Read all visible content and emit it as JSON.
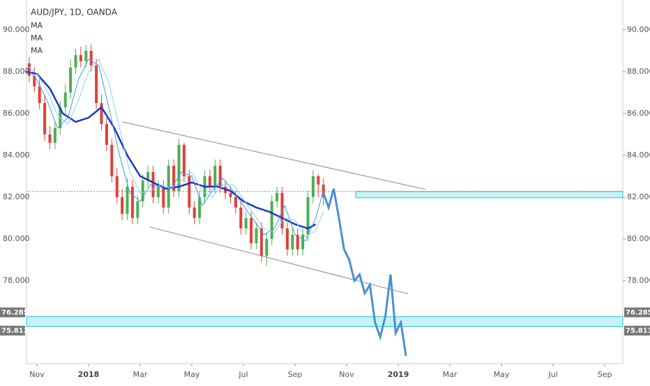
{
  "chart_data": {
    "type": "candlestick",
    "title": "AUD/JPY, 1D, OANDA",
    "legend": [
      "MA",
      "MA",
      "MA"
    ],
    "xlim": [
      -0.405,
      22.7
    ],
    "ylim": [
      74.03,
      91.43
    ],
    "xticks": [
      {
        "value": 0,
        "label": "Nov"
      },
      {
        "value": 2,
        "label": "2018"
      },
      {
        "value": 4,
        "label": "Mar"
      },
      {
        "value": 6,
        "label": "May"
      },
      {
        "value": 8,
        "label": "Jul"
      },
      {
        "value": 10,
        "label": "Sep"
      },
      {
        "value": 12,
        "label": "Nov"
      },
      {
        "value": 14,
        "label": "2019"
      },
      {
        "value": 16,
        "label": "Mar"
      },
      {
        "value": 18,
        "label": "May"
      },
      {
        "value": 20,
        "label": "Jul"
      },
      {
        "value": 22,
        "label": "Sep"
      }
    ],
    "yticks": [
      {
        "value": 78,
        "label": "78.000"
      },
      {
        "value": 80,
        "label": "80.000"
      },
      {
        "value": 82,
        "label": "82.000"
      },
      {
        "value": 84,
        "label": "84.000"
      },
      {
        "value": 86,
        "label": "86.000"
      },
      {
        "value": 88,
        "label": "88.000"
      },
      {
        "value": 90,
        "label": "90.000"
      }
    ],
    "up_color": "#4caf50",
    "down_color": "#e0403a",
    "candles": {
      "x": [
        -0.3,
        -0.1,
        0.1,
        0.3,
        0.5,
        0.7,
        0.9,
        1.1,
        1.3,
        1.5,
        1.7,
        1.9,
        2.1,
        2.3,
        2.5,
        2.7,
        2.9,
        3.1,
        3.3,
        3.5,
        3.7,
        3.9,
        4.1,
        4.3,
        4.5,
        4.7,
        4.9,
        5.1,
        5.3,
        5.5,
        5.7,
        5.9,
        6.1,
        6.3,
        6.5,
        6.7,
        6.9,
        7.1,
        7.3,
        7.5,
        7.7,
        7.9,
        8.1,
        8.3,
        8.5,
        8.7,
        8.9,
        9.1,
        9.3,
        9.5,
        9.7,
        9.9,
        10.1,
        10.3,
        10.5,
        10.7,
        10.9,
        11.1
      ],
      "open": [
        88.4,
        87.8,
        87.3,
        86.5,
        85.0,
        84.6,
        85.3,
        86.3,
        87.0,
        88.2,
        88.8,
        88.5,
        89.0,
        88.3,
        86.5,
        85.5,
        84.5,
        83.0,
        82.0,
        81.2,
        82.5,
        81.0,
        81.8,
        82.8,
        83.2,
        82.0,
        82.5,
        81.5,
        83.5,
        82.3,
        84.5,
        83.0,
        81.5,
        81.0,
        82.0,
        83.0,
        82.5,
        83.5,
        82.5,
        82.2,
        82.0,
        81.5,
        80.5,
        81.0,
        79.8,
        80.5,
        79.2,
        80.0,
        81.8,
        82.2,
        80.5,
        79.5,
        80.2,
        79.5,
        80.2,
        82.0,
        83.0,
        82.6
      ],
      "close": [
        87.8,
        87.3,
        86.5,
        85.0,
        84.6,
        85.3,
        86.3,
        87.0,
        88.2,
        88.8,
        88.5,
        89.0,
        88.3,
        86.5,
        85.5,
        84.5,
        83.0,
        82.0,
        81.2,
        82.5,
        81.0,
        81.8,
        82.8,
        83.2,
        82.0,
        82.5,
        81.5,
        83.5,
        82.3,
        84.5,
        83.0,
        81.5,
        81.0,
        82.0,
        83.0,
        82.5,
        83.5,
        82.5,
        82.2,
        82.0,
        81.5,
        80.5,
        81.0,
        79.8,
        80.5,
        79.2,
        80.0,
        81.8,
        82.2,
        80.5,
        79.5,
        80.2,
        79.5,
        80.2,
        82.0,
        83.0,
        82.6,
        82.0
      ],
      "high": [
        88.7,
        88.2,
        87.7,
        86.9,
        85.4,
        85.6,
        86.6,
        87.4,
        88.6,
        89.1,
        89.2,
        89.3,
        89.3,
        88.6,
        86.9,
        85.8,
        84.8,
        83.4,
        82.4,
        82.9,
        82.8,
        82.1,
        83.1,
        83.5,
        83.5,
        82.8,
        82.8,
        83.8,
        83.8,
        84.8,
        84.6,
        83.3,
        81.8,
        82.3,
        83.3,
        83.3,
        83.8,
        83.8,
        82.8,
        82.5,
        82.3,
        81.8,
        81.3,
        81.3,
        80.8,
        80.8,
        80.3,
        82.1,
        82.5,
        82.5,
        80.8,
        80.5,
        80.5,
        80.5,
        82.3,
        83.3,
        83.1,
        82.9
      ],
      "low": [
        87.5,
        87.0,
        86.2,
        84.7,
        84.3,
        84.3,
        85.0,
        86.0,
        86.7,
        87.9,
        88.2,
        88.2,
        88.0,
        86.2,
        85.2,
        84.2,
        82.7,
        81.7,
        80.9,
        80.9,
        80.7,
        80.7,
        81.5,
        82.5,
        81.7,
        81.7,
        81.2,
        81.2,
        82.0,
        82.0,
        82.7,
        81.2,
        80.7,
        80.7,
        81.7,
        82.2,
        82.2,
        82.2,
        81.9,
        81.7,
        81.2,
        80.2,
        80.2,
        79.5,
        79.5,
        78.9,
        78.7,
        79.7,
        81.5,
        80.2,
        79.2,
        79.2,
        79.2,
        79.2,
        79.9,
        81.7,
        82.0,
        81.6
      ]
    },
    "series": [
      {
        "name": "MA",
        "color": "#1a33c8",
        "width": 2.5,
        "x": [
          -0.4,
          0,
          0.5,
          1,
          1.5,
          2,
          2.5,
          3,
          3.5,
          4,
          4.5,
          5,
          5.5,
          6,
          6.5,
          7,
          7.5,
          8,
          8.5,
          9,
          9.5,
          10,
          10.5,
          10.8
        ],
        "values": [
          88.0,
          87.9,
          87.2,
          86.0,
          85.6,
          85.8,
          86.3,
          85.3,
          84.0,
          83.0,
          82.7,
          82.4,
          82.5,
          82.7,
          82.5,
          82.5,
          82.3,
          81.8,
          81.5,
          81.3,
          81.0,
          80.7,
          80.5,
          80.7
        ]
      },
      {
        "name": "MA",
        "color": "#3a9be0",
        "width": 1,
        "x": [
          -0.4,
          0,
          0.4,
          0.8,
          1.2,
          1.6,
          2.0,
          2.4,
          2.8,
          3.2,
          3.6,
          4.0,
          4.4,
          4.8,
          5.2,
          5.6,
          6.0,
          6.4,
          6.8,
          7.2,
          7.6,
          8.0,
          8.4,
          8.8,
          9.2,
          9.6,
          10.0,
          10.4,
          10.8,
          11.1
        ],
        "values": [
          88.2,
          87.6,
          86.6,
          85.3,
          85.8,
          87.6,
          88.6,
          88.3,
          86.2,
          84.0,
          82.2,
          81.8,
          82.6,
          82.5,
          82.4,
          83.2,
          83.0,
          81.6,
          82.3,
          82.9,
          82.3,
          81.6,
          80.9,
          80.2,
          80.5,
          81.6,
          80.2,
          79.9,
          81.0,
          82.3
        ]
      },
      {
        "name": "MA",
        "color": "#8fd0f0",
        "width": 1,
        "x": [
          -0.4,
          0,
          0.4,
          0.8,
          1.2,
          1.6,
          2.0,
          2.4,
          2.8,
          3.2,
          3.6,
          4.0,
          4.4,
          4.8,
          5.2,
          5.6,
          6.0,
          6.4,
          6.8,
          7.2,
          7.6,
          8.0,
          8.4,
          8.8,
          9.2,
          9.6,
          10.0,
          10.4,
          10.8,
          11.1
        ],
        "values": [
          88.3,
          87.9,
          87.1,
          85.9,
          85.5,
          86.6,
          88.0,
          88.6,
          87.4,
          85.3,
          83.2,
          82.2,
          82.3,
          82.6,
          82.4,
          82.8,
          83.2,
          82.3,
          82.0,
          82.6,
          82.6,
          81.9,
          81.2,
          80.5,
          80.3,
          81.0,
          80.9,
          80.1,
          80.4,
          81.3
        ]
      }
    ],
    "projection": {
      "color": "#4a90d0",
      "x": [
        11.1,
        11.3,
        11.5,
        11.7,
        11.9,
        12.1,
        12.3,
        12.5,
        12.7,
        12.9,
        13.1,
        13.3,
        13.5,
        13.7,
        13.9,
        14.1,
        14.3
      ],
      "values": [
        82.2,
        81.5,
        82.4,
        81.0,
        79.5,
        79.0,
        78.0,
        78.3,
        77.4,
        77.8,
        76.0,
        75.3,
        76.3,
        78.3,
        75.5,
        76.0,
        74.4
      ]
    },
    "trendlines": [
      {
        "x": [
          3.3,
          15.05
        ],
        "values": [
          85.6,
          82.37
        ]
      },
      {
        "x": [
          4.38,
          14.38
        ],
        "values": [
          80.57,
          77.37
        ]
      }
    ],
    "hline": {
      "value": 82.27,
      "color": "#4caf50"
    },
    "zones": [
      {
        "from": 82.27,
        "to": 81.97,
        "x_from": 12.35
      },
      {
        "from": 76.285,
        "to": 75.813,
        "x_from": -0.405
      }
    ]
  }
}
